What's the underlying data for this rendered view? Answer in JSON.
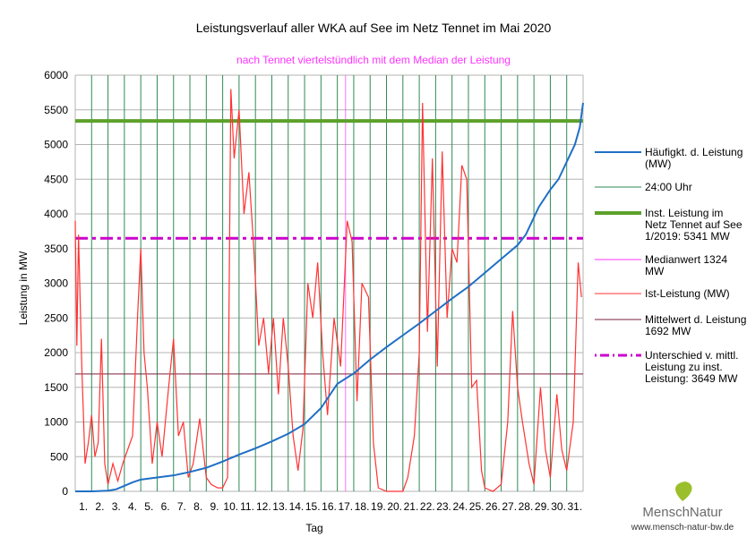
{
  "chart_data": {
    "type": "line",
    "title": "Leistungsverlauf aller WKA auf See im Netz Tennet im Mai 2020",
    "subtitle": "nach Tennet viertelstündlich mit dem Median der Leistung",
    "xlabel": "Tag",
    "ylabel": "Leistung in MW",
    "xlim": [
      0,
      31
    ],
    "ylim": [
      0,
      6000
    ],
    "yticks": [
      0,
      500,
      1000,
      1500,
      2000,
      2500,
      3000,
      3500,
      4000,
      4500,
      5000,
      5500,
      6000
    ],
    "xticks": [
      "1.",
      "2.",
      "3.",
      "4.",
      "5.",
      "6.",
      "7.",
      "8.",
      "9.",
      "10.",
      "11.",
      "12.",
      "13.",
      "14.",
      "15.",
      "16.",
      "17.",
      "18.",
      "19.",
      "20.",
      "21.",
      "22.",
      "23.",
      "24.",
      "25.",
      "26.",
      "27.",
      "28.",
      "29.",
      "30.",
      "31."
    ],
    "colors": {
      "blue": "#1f6fc5",
      "green": "#5ca12a",
      "grid24": "#2e8b57",
      "median": "#ff33ff",
      "ist": "#ff3333",
      "mean": "#7a1f3a",
      "diff": "#cc00cc"
    },
    "installed": 5341,
    "median": 1324,
    "mean": 1692,
    "difference": 3649,
    "haeufigkeit": {
      "x": [
        0,
        1,
        2,
        2.5,
        3,
        3.5,
        4,
        5,
        6,
        7,
        8,
        9,
        10,
        11,
        12,
        13,
        14,
        15,
        16,
        17,
        18,
        19,
        20,
        21,
        22,
        23,
        24,
        25,
        26,
        27,
        27.5,
        28,
        28.3,
        29,
        29.5,
        30,
        30.5,
        30.8,
        31
      ],
      "y": [
        0,
        0,
        10,
        30,
        80,
        130,
        170,
        200,
        230,
        280,
        340,
        430,
        530,
        620,
        720,
        830,
        970,
        1200,
        1550,
        1700,
        1900,
        2080,
        2250,
        2420,
        2600,
        2780,
        2950,
        3150,
        3350,
        3550,
        3700,
        3950,
        4100,
        4350,
        4500,
        4750,
        5000,
        5250,
        5600
      ]
    },
    "ist": {
      "x": [
        0,
        0.1,
        0.2,
        0.4,
        0.6,
        0.8,
        1,
        1.2,
        1.4,
        1.6,
        1.8,
        2,
        2.3,
        2.6,
        2.9,
        3.2,
        3.5,
        3.8,
        4,
        4.2,
        4.4,
        4.7,
        5,
        5.3,
        5.7,
        6,
        6.3,
        6.6,
        6.9,
        7.2,
        7.6,
        8,
        8.3,
        8.7,
        9,
        9.3,
        9.5,
        9.7,
        10,
        10.3,
        10.6,
        10.9,
        11.2,
        11.5,
        11.8,
        12.1,
        12.4,
        12.7,
        13,
        13.3,
        13.6,
        13.9,
        14.2,
        14.5,
        14.8,
        15.1,
        15.4,
        15.8,
        16.2,
        16.6,
        16.9,
        17.2,
        17.5,
        17.9,
        18.2,
        18.5,
        19,
        19.5,
        20,
        20.3,
        20.7,
        21,
        21.2,
        21.5,
        21.8,
        22.1,
        22.4,
        22.7,
        23,
        23.3,
        23.6,
        23.9,
        24.2,
        24.5,
        24.8,
        25,
        25.5,
        26,
        26.4,
        26.7,
        27,
        27.3,
        27.7,
        28,
        28.4,
        28.7,
        29,
        29.4,
        29.7,
        30,
        30.4,
        30.7,
        30.9
      ],
      "y": [
        3900,
        2100,
        3700,
        1800,
        400,
        700,
        1100,
        500,
        700,
        2200,
        400,
        100,
        400,
        150,
        400,
        600,
        800,
        2500,
        3500,
        2000,
        1500,
        400,
        1000,
        500,
        1500,
        2200,
        800,
        1000,
        200,
        400,
        1050,
        200,
        100,
        50,
        50,
        200,
        5800,
        4800,
        5500,
        4000,
        4600,
        3500,
        2100,
        2500,
        1700,
        2500,
        1400,
        2500,
        1800,
        800,
        300,
        900,
        3000,
        2500,
        3300,
        2000,
        1100,
        2500,
        1800,
        3900,
        3600,
        1300,
        3000,
        2800,
        700,
        50,
        0,
        0,
        0,
        200,
        800,
        2000,
        5600,
        2300,
        4800,
        1800,
        4900,
        2500,
        3500,
        3300,
        4700,
        4500,
        1500,
        1600,
        300,
        50,
        0,
        100,
        1000,
        2600,
        1500,
        1000,
        400,
        100,
        1500,
        600,
        200,
        1400,
        600,
        300,
        1000,
        3300,
        2800
      ]
    }
  },
  "legend": [
    {
      "key": "blue",
      "label": [
        "Häufigkt. d. Leistung",
        "(MW)"
      ],
      "style": "solid",
      "w": 2
    },
    {
      "key": "grid24",
      "label": [
        "24:00 Uhr"
      ],
      "style": "solid",
      "w": 1
    },
    {
      "key": "green",
      "label": [
        "Inst. Leistung im",
        "Netz Tennet auf See",
        "1/2019: 5341  MW"
      ],
      "style": "solid",
      "w": 4
    },
    {
      "key": "median",
      "label": [
        "Medianwert 1324",
        "MW"
      ],
      "style": "solid",
      "w": 1
    },
    {
      "key": "ist",
      "label": [
        "Ist-Leistung (MW)"
      ],
      "style": "solid",
      "w": 1
    },
    {
      "key": "mean",
      "label": [
        "Mittelwert d. Leistung",
        "1692 MW"
      ],
      "style": "solid",
      "w": 1
    },
    {
      "key": "diff",
      "label": [
        "Unterschied v. mittl.",
        "Leistung zu inst.",
        "Leistung: 3649 MW"
      ],
      "style": "dashdot",
      "w": 3
    }
  ],
  "logo": {
    "name": "MenschNatur",
    "url": "www.mensch-natur-bw.de"
  }
}
